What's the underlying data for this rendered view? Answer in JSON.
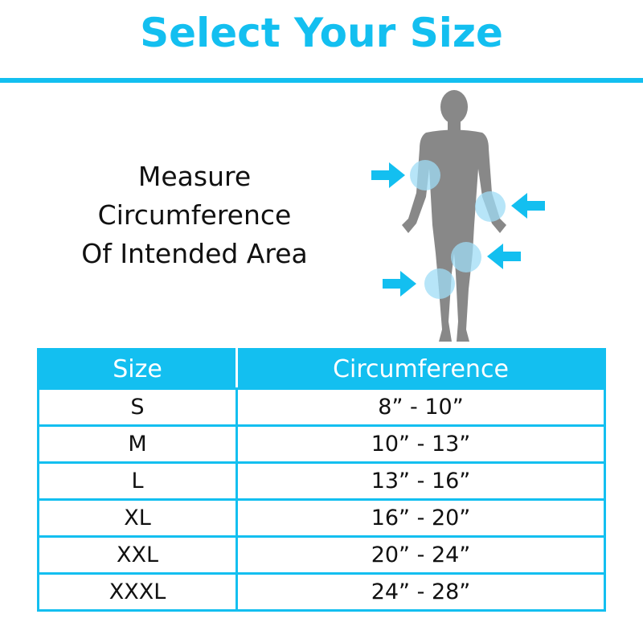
{
  "title": "Select Your Size",
  "instruction": [
    "Measure",
    "Circumference",
    "Of Intended Area"
  ],
  "colors": {
    "accent": "#13bff0",
    "figure": "#888888",
    "highlight": "#9fdcf5"
  },
  "figure": {
    "icon": "human-body-silhouette",
    "markers": [
      "upper-arm",
      "forearm",
      "thigh",
      "knee"
    ]
  },
  "table": {
    "headers": {
      "size": "Size",
      "circumference": "Circumference"
    },
    "rows": [
      {
        "size": "S",
        "circumference": "8” - 10”"
      },
      {
        "size": "M",
        "circumference": "10” - 13”"
      },
      {
        "size": "L",
        "circumference": "13” - 16”"
      },
      {
        "size": "XL",
        "circumference": "16” - 20”"
      },
      {
        "size": "XXL",
        "circumference": "20” - 24”"
      },
      {
        "size": "XXXL",
        "circumference": "24” - 28”"
      }
    ]
  }
}
